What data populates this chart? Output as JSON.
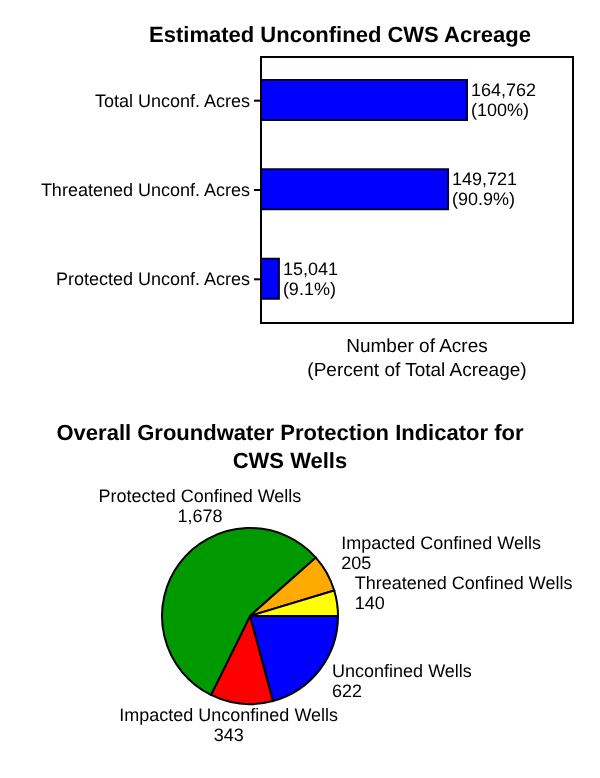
{
  "chart_data": [
    {
      "type": "bar",
      "orientation": "horizontal",
      "title": "Estimated Unconfined CWS Acreage",
      "xlabel": "Number of Acres\n(Percent of Total Acreage)",
      "categories": [
        "Total Unconf. Acres",
        "Threatened Unconf. Acres",
        "Protected Unconf. Acres"
      ],
      "values": [
        164762,
        149721,
        15041
      ],
      "color": "#0000ff",
      "value_labels": [
        "164,762\n(100%)",
        "149,721\n(90.9%)",
        "15,041\n(9.1%)"
      ],
      "xlim": [
        0,
        250000
      ],
      "tick_labels": "y",
      "grid": false,
      "legend": false
    },
    {
      "type": "pie",
      "title": "Overall Groundwater Protection Indicator for\nCWS Wells",
      "categories": [
        "Unconfined Wells",
        "Impacted Unconfined Wells",
        "Protected Confined Wells",
        "Impacted Confined Wells",
        "Threatened Confined Wells"
      ],
      "values": [
        622,
        343,
        1678,
        205,
        140
      ],
      "colors": [
        "#0000ff",
        "#ff0000",
        "#009900",
        "#ffaa00",
        "#ffff00"
      ],
      "value_labels": [
        "622",
        "343",
        "1,678",
        "205",
        "140"
      ],
      "legend": false
    }
  ]
}
